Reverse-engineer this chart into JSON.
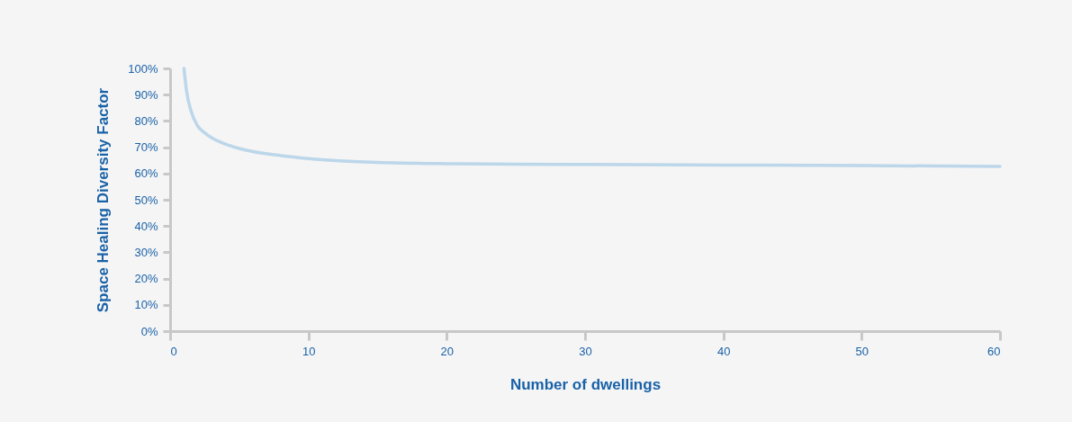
{
  "chart_data": {
    "type": "line",
    "xlabel": "Number of dwellings",
    "ylabel": "Space Healing Diversity Factor",
    "series": [
      {
        "color": "#bcd6ea",
        "x": [
          1,
          1.2,
          1.5,
          2,
          2.5,
          3,
          4,
          5,
          6,
          8,
          10,
          12,
          15,
          20,
          25,
          30,
          40,
          50,
          60
        ],
        "values": [
          100,
          91,
          84,
          78,
          75.5,
          73.6,
          71.2,
          69.5,
          68.3,
          66.8,
          65.7,
          64.9,
          64.2,
          63.7,
          63.5,
          63.4,
          63.2,
          63,
          62.7
        ]
      }
    ],
    "xlim": [
      0,
      60
    ],
    "xticks": [
      0,
      10,
      20,
      30,
      40,
      50,
      60
    ],
    "ylim": [
      0,
      100
    ],
    "yticks": [
      {
        "value": 0,
        "label": "0%"
      },
      {
        "value": 10,
        "label": "10%"
      },
      {
        "value": 20,
        "label": "20%"
      },
      {
        "value": 30,
        "label": "30%"
      },
      {
        "value": 40,
        "label": "40%"
      },
      {
        "value": 50,
        "label": "50%"
      },
      {
        "value": 60,
        "label": "60%"
      },
      {
        "value": 70,
        "label": "70%"
      },
      {
        "value": 80,
        "label": "80%"
      },
      {
        "value": 90,
        "label": "90%"
      },
      {
        "value": 100,
        "label": "100%"
      }
    ],
    "grid": false,
    "marker": "none",
    "line_style": "solid"
  }
}
